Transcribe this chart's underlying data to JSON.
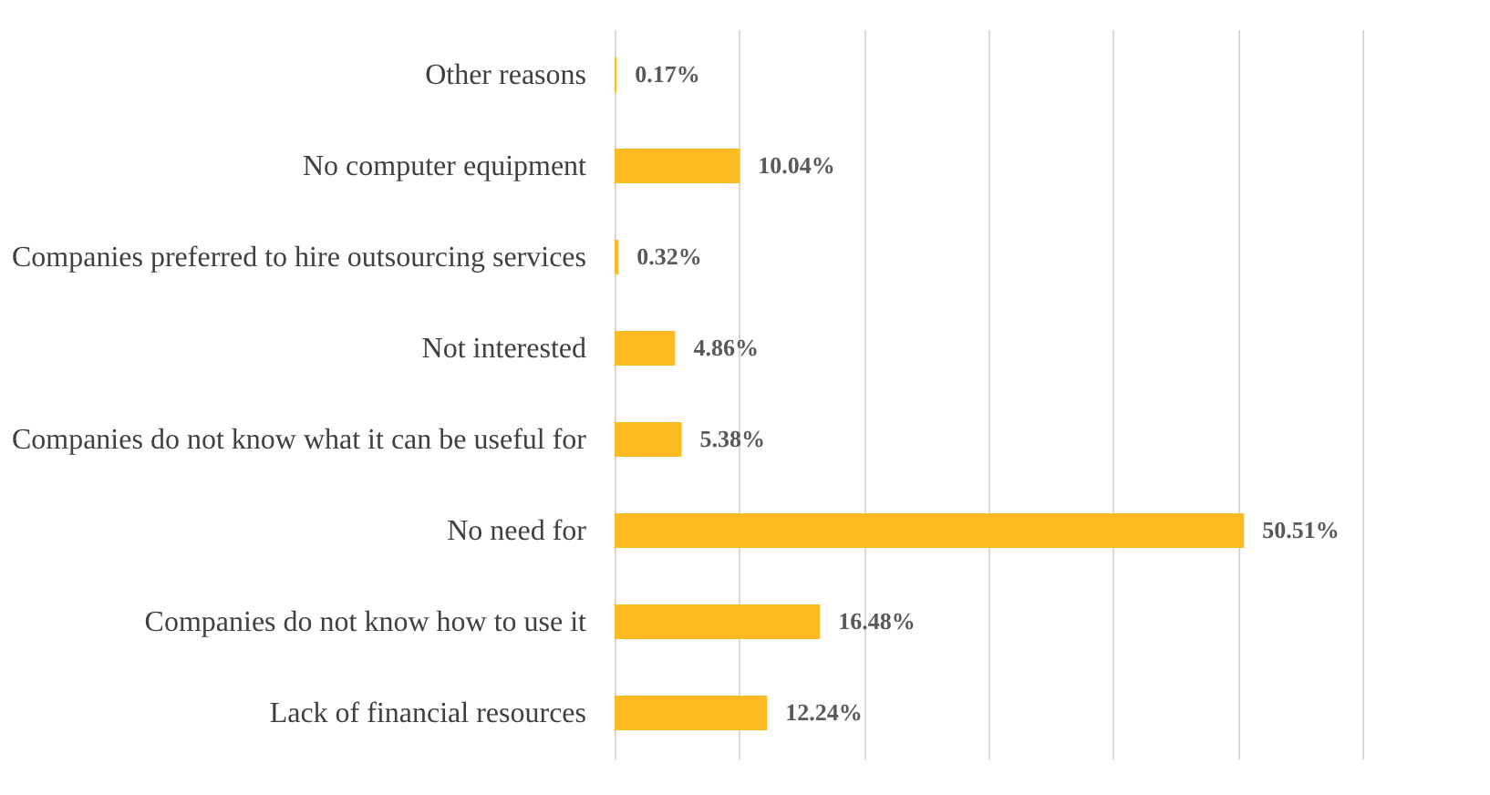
{
  "chart_data": {
    "type": "bar",
    "orientation": "horizontal",
    "categories": [
      "Other reasons",
      "No computer equipment",
      "Companies preferred to hire outsourcing services",
      "Not interested",
      "Companies do not know what it can be useful for",
      "No need for",
      "Companies do not know how to use it",
      "Lack of financial resources"
    ],
    "values": [
      0.17,
      10.04,
      0.32,
      4.86,
      5.38,
      50.51,
      16.48,
      12.24
    ],
    "value_labels": [
      "0.17%",
      "10.04%",
      "0.32%",
      "4.86%",
      "5.38%",
      "50.51%",
      "16.48%",
      "12.24%"
    ],
    "color": "#fbbb21",
    "xlim": [
      0,
      60
    ],
    "xticks": [
      {
        "value": 0,
        "label": null
      },
      {
        "value": 10,
        "label": null
      },
      {
        "value": 20,
        "label": null
      },
      {
        "value": 30,
        "label": null
      },
      {
        "value": 40,
        "label": null
      },
      {
        "value": 50,
        "label": null
      },
      {
        "value": 60,
        "label": null
      }
    ],
    "grid": "x",
    "tick_labels": "y"
  }
}
